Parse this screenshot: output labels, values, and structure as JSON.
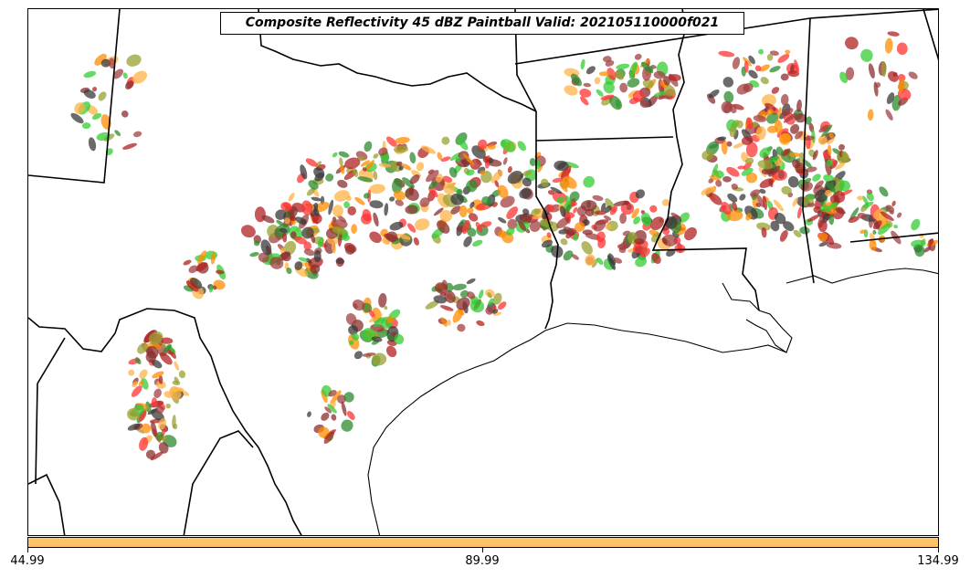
{
  "title": "Composite Reflectivity 45 dBZ Paintball Valid: 202105110000f021",
  "colorbar": {
    "color": "#ffc266",
    "tick_labels": [
      "44.99",
      "89.99",
      "134.99"
    ]
  },
  "paintball_colors": [
    "#ff3333",
    "#b22222",
    "#8b2e2e",
    "#ff8c00",
    "#ffb347",
    "#9aa032",
    "#2e8b2e",
    "#33cc33",
    "#3a3a3a",
    "#a04040"
  ],
  "map_lines": {
    "state_border_color": "#000000",
    "coast_color": "#000000"
  }
}
